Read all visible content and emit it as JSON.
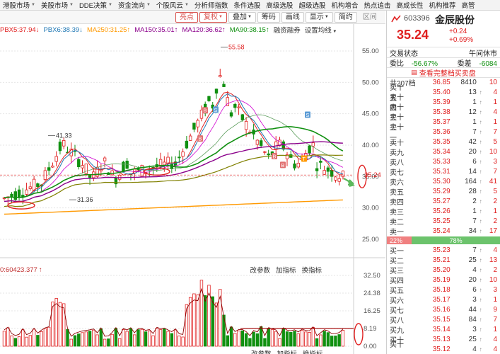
{
  "top_menu": [
    {
      "label": "港股市场",
      "dropdown": true
    },
    {
      "label": "美股市场",
      "dropdown": true
    },
    {
      "label": "DDE决策",
      "dropdown": true
    },
    {
      "label": "资金流向",
      "dropdown": true
    },
    {
      "label": "个股风云",
      "dropdown": true
    },
    {
      "label": "分析师指数",
      "dropdown": false
    },
    {
      "label": "条件选股",
      "dropdown": false
    },
    {
      "label": "高级选股",
      "dropdown": false
    },
    {
      "label": "超级选股",
      "dropdown": false
    },
    {
      "label": "机构增合",
      "dropdown": false
    },
    {
      "label": "热点追击",
      "dropdown": false
    },
    {
      "label": "高成长性",
      "dropdown": false
    },
    {
      "label": "机构推荐",
      "dropdown": false
    },
    {
      "label": "高管",
      "dropdown": false
    }
  ],
  "toolbar": {
    "buttons": [
      {
        "label": "亮点",
        "active": true,
        "dropdown": false
      },
      {
        "label": "复权",
        "active": true,
        "dropdown": true
      },
      {
        "label": "叠加",
        "active": false,
        "dropdown": true
      },
      {
        "label": "筹码",
        "active": false,
        "dropdown": false
      },
      {
        "label": "画线",
        "active": false,
        "dropdown": false
      },
      {
        "label": "显示",
        "active": false,
        "dropdown": true
      },
      {
        "label": "简约",
        "active": false,
        "dropdown": false
      },
      {
        "label": "区间",
        "active": false,
        "dropdown": false,
        "plain": true
      }
    ]
  },
  "legend": {
    "items": [
      {
        "text": "PBX5:37.94",
        "color": "#e02020",
        "arrow": "↓"
      },
      {
        "text": "PBX6:38.39",
        "color": "#1f77b4",
        "arrow": "↓"
      },
      {
        "text": "MA250:31.25",
        "color": "#ff9900",
        "arrow": "↑"
      },
      {
        "text": "MA150:35.01",
        "color": "#8b008b",
        "arrow": "↑"
      },
      {
        "text": "MA120:36.62",
        "color": "#8b008b",
        "arrow": "↑"
      },
      {
        "text": "MA90:38.15",
        "color": "#109010",
        "arrow": "↑"
      }
    ],
    "buttons": [
      {
        "label": "融资融券"
      },
      {
        "label": "设置均线",
        "dropdown": true
      }
    ]
  },
  "chart_data": {
    "type": "candlestick",
    "y_ticks": [
      "55.00",
      "50.00",
      "45.00",
      "40.00",
      "35.00",
      "30.00",
      "25.00"
    ],
    "current_price_label": "35.24",
    "annotations": [
      "55.58",
      "41.33",
      "31.36"
    ],
    "volume": {
      "label": "0:60423.377",
      "arrow": "↑",
      "y_ticks": [
        "32.50",
        "24.38",
        "16.25",
        "8.19",
        "0.00"
      ],
      "buttons": [
        "改参数",
        "加指标",
        "换指标"
      ]
    }
  },
  "stock": {
    "code": "603396",
    "name": "金辰股份",
    "price": "35.24",
    "change": "+0.24",
    "change_pct": "+0.69%",
    "status_label": "交易状态",
    "status_value": "午间休市",
    "wb_label": "委比",
    "wb_value": "-56.67%",
    "wc_label": "委差",
    "wc_value": "-6084",
    "view_full": "查看完整档买卖盘",
    "levels_total": "共207档",
    "levels_total_price": "36.85",
    "levels_total_vol": "8410",
    "levels_total_cnt": "10",
    "sell_levels": [
      {
        "label": "卖十五",
        "price": "35.40",
        "vol": "13",
        "cnt": "4"
      },
      {
        "label": "卖十四",
        "price": "35.39",
        "vol": "1",
        "cnt": "1"
      },
      {
        "label": "卖十三",
        "price": "35.38",
        "vol": "12",
        "cnt": "4"
      },
      {
        "label": "卖十二",
        "price": "35.37",
        "vol": "1",
        "cnt": "1"
      },
      {
        "label": "卖十一",
        "price": "35.36",
        "vol": "7",
        "cnt": "7"
      },
      {
        "label": "卖十",
        "price": "35.35",
        "vol": "42",
        "cnt": "5"
      },
      {
        "label": "卖九",
        "price": "35.34",
        "vol": "20",
        "cnt": "10"
      },
      {
        "label": "卖八",
        "price": "35.33",
        "vol": "6",
        "cnt": "3"
      },
      {
        "label": "卖七",
        "price": "35.31",
        "vol": "14",
        "cnt": "7"
      },
      {
        "label": "卖六",
        "price": "35.30",
        "vol": "164",
        "cnt": "41"
      },
      {
        "label": "卖五",
        "price": "35.29",
        "vol": "28",
        "cnt": "5"
      },
      {
        "label": "卖四",
        "price": "35.27",
        "vol": "2",
        "cnt": "2"
      },
      {
        "label": "卖三",
        "price": "35.26",
        "vol": "1",
        "cnt": "1"
      },
      {
        "label": "卖二",
        "price": "35.25",
        "vol": "7",
        "cnt": "2"
      },
      {
        "label": "卖一",
        "price": "35.24",
        "vol": "34",
        "cnt": "17"
      }
    ],
    "ratio": {
      "buy_pct": "22%",
      "sell_pct": "78%"
    },
    "buy_levels": [
      {
        "label": "买一",
        "price": "35.23",
        "vol": "7",
        "cnt": "4"
      },
      {
        "label": "买二",
        "price": "35.21",
        "vol": "25",
        "cnt": "13"
      },
      {
        "label": "买三",
        "price": "35.20",
        "vol": "4",
        "cnt": "2"
      },
      {
        "label": "买四",
        "price": "35.19",
        "vol": "20",
        "cnt": "10"
      },
      {
        "label": "买五",
        "price": "35.18",
        "vol": "6",
        "cnt": "3"
      },
      {
        "label": "买六",
        "price": "35.17",
        "vol": "3",
        "cnt": "1"
      },
      {
        "label": "买七",
        "price": "35.16",
        "vol": "44",
        "cnt": "9"
      },
      {
        "label": "买八",
        "price": "35.15",
        "vol": "84",
        "cnt": "7"
      },
      {
        "label": "买九",
        "price": "35.14",
        "vol": "3",
        "cnt": "1"
      },
      {
        "label": "买十",
        "price": "35.13",
        "vol": "25",
        "cnt": "4"
      },
      {
        "label": "买十一",
        "price": "35.12",
        "vol": "4",
        "cnt": "4"
      }
    ]
  },
  "colors": {
    "up": "#e02020",
    "down": "#109010",
    "ma250": "#ff9900",
    "ma150": "#8b008b",
    "ma90": "#109010",
    "grid": "#e6e6e6"
  }
}
